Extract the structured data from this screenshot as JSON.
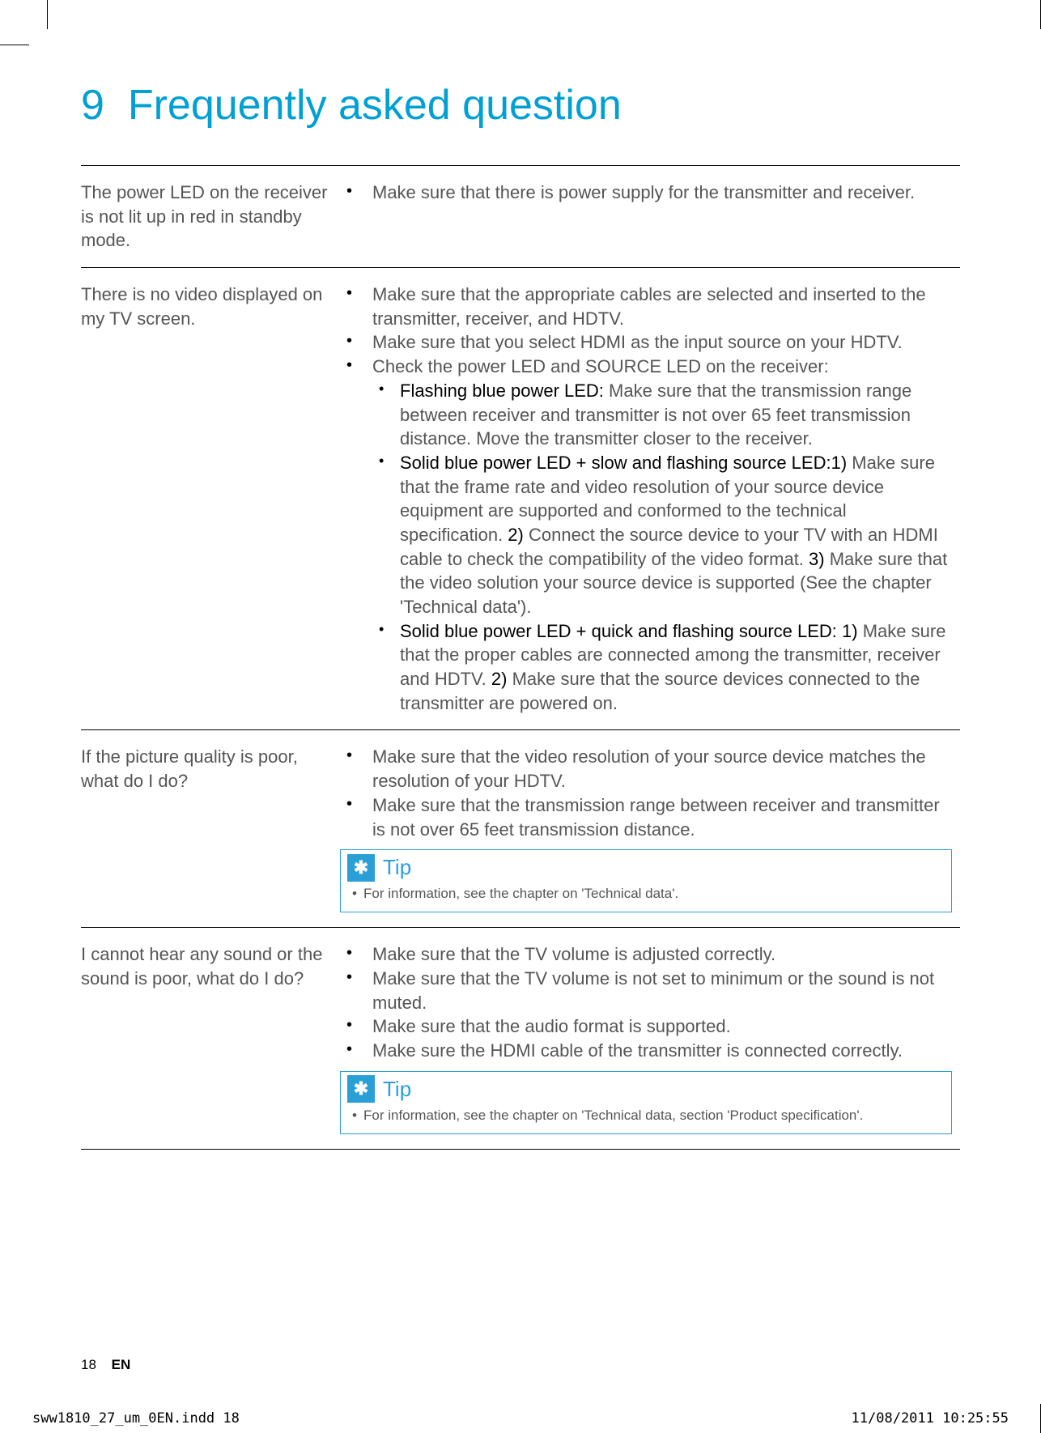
{
  "accent_color": "#00a0d2",
  "title_number": "9",
  "title_text": "Frequently asked question",
  "rows": [
    {
      "q": "The power LED on the receiver is not lit up in red in standby mode.",
      "lv1": [
        {
          "text": "Make sure that there is power supply for the transmitter and receiver."
        }
      ]
    },
    {
      "q": "There is no video displayed on my TV screen.",
      "lv1": [
        {
          "text": "Make sure that the appropriate cables are selected and inserted to the transmitter, receiver, and HDTV."
        },
        {
          "text": "Make sure that you select HDMI as the input source on your HDTV."
        },
        {
          "text": "Check the power LED and SOURCE LED on the receiver:",
          "lv2": [
            {
              "bold": "Flashing blue power LED:",
              "text": " Make sure that the transmission range between receiver and transmitter is not over 65 feet transmission distance. Move the transmitter closer to the receiver."
            },
            {
              "bold": "Solid blue power LED + slow and flashing source LED:",
              "bold2": "1)",
              "text": " Make sure that the frame rate and video resolution of your source device equipment are supported and conformed to the technical specification. ",
              "b2": "2)",
              "t2": " Connect the source device to your TV with an HDMI cable to check the compatibility of the video format. ",
              "b3": "3)",
              "t3": " Make sure that the video solution your source device is supported (See the chapter 'Technical data')."
            },
            {
              "bold": "Solid blue power LED + quick and flashing source LED: 1)",
              "text": " Make sure that the proper cables are connected among the transmitter, receiver and HDTV. ",
              "b2": "2)",
              "t2": " Make sure that the source devices connected to the transmitter are powered on."
            }
          ]
        }
      ]
    },
    {
      "q": "If the picture quality is poor, what do I do?",
      "lv1": [
        {
          "text": "Make sure that the video resolution of your source device matches the resolution of your HDTV."
        },
        {
          "text": "Make sure that the transmission range between receiver and transmitter is not over 65 feet transmission distance."
        }
      ],
      "tip_label": "Tip",
      "tip_text": "For information, see the chapter on 'Technical data'."
    },
    {
      "q": "I cannot hear any sound or the sound is poor, what do I do?",
      "lv1": [
        {
          "text": "Make sure that the TV volume is adjusted correctly."
        },
        {
          "text": "Make sure that the TV volume is not set to minimum or the sound is not muted."
        },
        {
          "text": "Make sure that the audio format is supported."
        },
        {
          "text": "Make sure the HDMI cable of the transmitter is connected correctly."
        }
      ],
      "tip_label": "Tip",
      "tip_text": "For information, see the chapter on 'Technical data, section 'Product specification'."
    }
  ],
  "page_no": "18",
  "page_lang": "EN",
  "indd_left": "sww1810_27_um_0EN.indd   18",
  "indd_right": "11/08/2011   10:25:55"
}
